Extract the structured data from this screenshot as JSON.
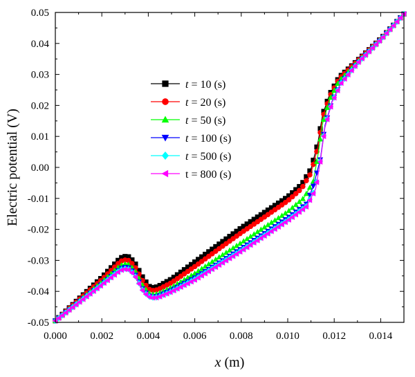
{
  "chart_data": {
    "type": "line",
    "xlabel": {
      "var": "x",
      "unit": " (m)"
    },
    "ylabel": "Electric potential (V)",
    "xlim": [
      0.0,
      0.015
    ],
    "ylim": [
      -0.05,
      0.05
    ],
    "xticks": [
      "0.000",
      "0.002",
      "0.004",
      "0.006",
      "0.008",
      "0.010",
      "0.012",
      "0.014"
    ],
    "yticks": [
      "-0.05",
      "-0.04",
      "-0.03",
      "-0.02",
      "-0.01",
      "0.00",
      "0.01",
      "0.02",
      "0.03",
      "0.04",
      "0.05"
    ],
    "legend_position": "center-left",
    "series": [
      {
        "name": "t = 10 (s)",
        "var": "t",
        "rest": " = 10 (s)",
        "color": "#000000",
        "marker": "square",
        "points": [
          [
            0.0,
            -0.0495
          ],
          [
            0.001,
            -0.0425
          ],
          [
            0.002,
            -0.0355
          ],
          [
            0.0028,
            -0.0292
          ],
          [
            0.0031,
            -0.0285
          ],
          [
            0.0034,
            -0.0305
          ],
          [
            0.0038,
            -0.036
          ],
          [
            0.0041,
            -0.0389
          ],
          [
            0.0044,
            -0.0385
          ],
          [
            0.005,
            -0.036
          ],
          [
            0.006,
            -0.0305
          ],
          [
            0.007,
            -0.025
          ],
          [
            0.008,
            -0.0195
          ],
          [
            0.009,
            -0.0145
          ],
          [
            0.01,
            -0.0095
          ],
          [
            0.0106,
            -0.0055
          ],
          [
            0.011,
            -0.0005
          ],
          [
            0.0113,
            0.008
          ],
          [
            0.0115,
            0.017
          ],
          [
            0.0118,
            0.0235
          ],
          [
            0.0122,
            0.029
          ],
          [
            0.013,
            0.0345
          ],
          [
            0.014,
            0.0415
          ],
          [
            0.015,
            0.0495
          ]
        ]
      },
      {
        "name": "t = 20 (s)",
        "var": "t",
        "rest": " = 20 (s)",
        "color": "#ff0000",
        "marker": "circle",
        "points": [
          [
            0.0,
            -0.0495
          ],
          [
            0.001,
            -0.0428
          ],
          [
            0.002,
            -0.0362
          ],
          [
            0.0028,
            -0.0303
          ],
          [
            0.0031,
            -0.0297
          ],
          [
            0.0034,
            -0.0317
          ],
          [
            0.0038,
            -0.0372
          ],
          [
            0.0041,
            -0.0398
          ],
          [
            0.0044,
            -0.0395
          ],
          [
            0.005,
            -0.0372
          ],
          [
            0.006,
            -0.032
          ],
          [
            0.007,
            -0.0265
          ],
          [
            0.008,
            -0.0211
          ],
          [
            0.009,
            -0.016
          ],
          [
            0.01,
            -0.0108
          ],
          [
            0.0106,
            -0.0068
          ],
          [
            0.011,
            -0.0018
          ],
          [
            0.0113,
            0.0065
          ],
          [
            0.0115,
            0.016
          ],
          [
            0.0118,
            0.0228
          ],
          [
            0.0122,
            0.0285
          ],
          [
            0.013,
            0.0343
          ],
          [
            0.014,
            0.0414
          ],
          [
            0.015,
            0.0495
          ]
        ]
      },
      {
        "name": "t = 50 (s)",
        "var": "t",
        "rest": " = 50 (s)",
        "color": "#00ff00",
        "marker": "triangle-up",
        "points": [
          [
            0.0,
            -0.0495
          ],
          [
            0.001,
            -0.0432
          ],
          [
            0.002,
            -0.037
          ],
          [
            0.0028,
            -0.0316
          ],
          [
            0.0031,
            -0.031
          ],
          [
            0.0034,
            -0.033
          ],
          [
            0.0038,
            -0.0387
          ],
          [
            0.0041,
            -0.041
          ],
          [
            0.0044,
            -0.0408
          ],
          [
            0.005,
            -0.0387
          ],
          [
            0.006,
            -0.0342
          ],
          [
            0.007,
            -0.0292
          ],
          [
            0.008,
            -0.0243
          ],
          [
            0.009,
            -0.0193
          ],
          [
            0.01,
            -0.0143
          ],
          [
            0.0107,
            -0.0098
          ],
          [
            0.0111,
            -0.0045
          ],
          [
            0.0113,
            0.004
          ],
          [
            0.0115,
            0.0142
          ],
          [
            0.0118,
            0.0218
          ],
          [
            0.0122,
            0.0278
          ],
          [
            0.013,
            0.034
          ],
          [
            0.014,
            0.0413
          ],
          [
            0.015,
            0.0495
          ]
        ]
      },
      {
        "name": "t = 100 (s)",
        "var": "t",
        "rest": " = 100 (s)",
        "color": "#0000ff",
        "marker": "triangle-down",
        "points": [
          [
            0.0,
            -0.0495
          ],
          [
            0.001,
            -0.0435
          ],
          [
            0.002,
            -0.0376
          ],
          [
            0.0028,
            -0.0326
          ],
          [
            0.0031,
            -0.032
          ],
          [
            0.0034,
            -0.034
          ],
          [
            0.0038,
            -0.0398
          ],
          [
            0.0041,
            -0.0418
          ],
          [
            0.0044,
            -0.0416
          ],
          [
            0.005,
            -0.0396
          ],
          [
            0.006,
            -0.0356
          ],
          [
            0.007,
            -0.031
          ],
          [
            0.008,
            -0.0262
          ],
          [
            0.009,
            -0.0213
          ],
          [
            0.01,
            -0.0163
          ],
          [
            0.0108,
            -0.0118
          ],
          [
            0.0111,
            -0.006
          ],
          [
            0.0114,
            0.0025
          ],
          [
            0.0116,
            0.0135
          ],
          [
            0.0119,
            0.0212
          ],
          [
            0.0123,
            0.0275
          ],
          [
            0.013,
            0.0337
          ],
          [
            0.014,
            0.0412
          ],
          [
            0.015,
            0.0495
          ]
        ]
      },
      {
        "name": "t = 500 (s)",
        "var": "t",
        "rest": " = 500 (s)",
        "color": "#00ffff",
        "marker": "diamond",
        "points": [
          [
            0.0,
            -0.0495
          ],
          [
            0.001,
            -0.0436
          ],
          [
            0.002,
            -0.0378
          ],
          [
            0.0028,
            -0.033
          ],
          [
            0.0031,
            -0.0325
          ],
          [
            0.0034,
            -0.0345
          ],
          [
            0.0038,
            -0.0402
          ],
          [
            0.0041,
            -0.042
          ],
          [
            0.0044,
            -0.0419
          ],
          [
            0.005,
            -0.04
          ],
          [
            0.006,
            -0.0361
          ],
          [
            0.007,
            -0.0315
          ],
          [
            0.008,
            -0.0268
          ],
          [
            0.009,
            -0.0219
          ],
          [
            0.01,
            -0.017
          ],
          [
            0.0108,
            -0.0125
          ],
          [
            0.0112,
            -0.0068
          ],
          [
            0.0114,
            0.002
          ],
          [
            0.0116,
            0.013
          ],
          [
            0.0119,
            0.021
          ],
          [
            0.0123,
            0.0273
          ],
          [
            0.013,
            0.0336
          ],
          [
            0.014,
            0.0412
          ],
          [
            0.015,
            0.0495
          ]
        ]
      },
      {
        "name": "t = 800 (s)",
        "var": "",
        "rest": "t = 800 (s)",
        "color": "#ff00ff",
        "marker": "triangle-left",
        "points": [
          [
            0.0,
            -0.0495
          ],
          [
            0.001,
            -0.0437
          ],
          [
            0.002,
            -0.0379
          ],
          [
            0.0028,
            -0.0332
          ],
          [
            0.0031,
            -0.0327
          ],
          [
            0.0034,
            -0.0347
          ],
          [
            0.0038,
            -0.0404
          ],
          [
            0.0041,
            -0.0421
          ],
          [
            0.0044,
            -0.042
          ],
          [
            0.005,
            -0.0401
          ],
          [
            0.006,
            -0.0363
          ],
          [
            0.007,
            -0.0317
          ],
          [
            0.008,
            -0.027
          ],
          [
            0.009,
            -0.0221
          ],
          [
            0.01,
            -0.0172
          ],
          [
            0.0108,
            -0.0127
          ],
          [
            0.0112,
            -0.007
          ],
          [
            0.0114,
            0.0018
          ],
          [
            0.0116,
            0.0128
          ],
          [
            0.0119,
            0.0209
          ],
          [
            0.0123,
            0.0272
          ],
          [
            0.013,
            0.0336
          ],
          [
            0.014,
            0.0412
          ],
          [
            0.015,
            0.0495
          ]
        ]
      }
    ]
  }
}
